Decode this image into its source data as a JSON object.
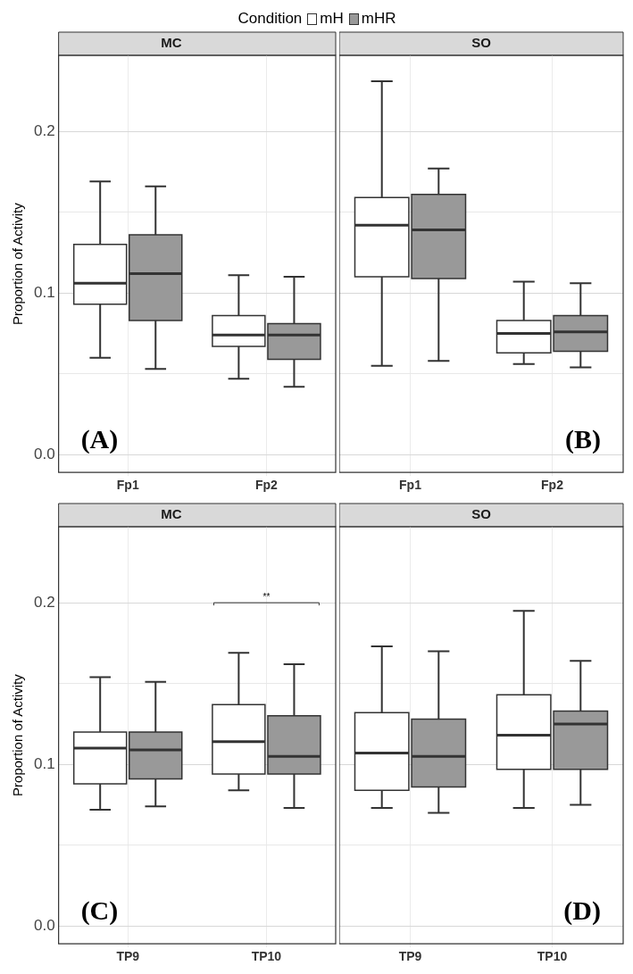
{
  "chart_data": [
    {
      "type": "box",
      "title": "MC",
      "ylabel": "Proportion of Activity",
      "legend_title": "Condition",
      "legend": "top",
      "grid": true,
      "categories": [
        "Fp1",
        "Fp2"
      ],
      "ylim": [
        -0.011,
        0.247
      ],
      "yticks": [
        {
          "value": 0,
          "label": "0.0"
        },
        {
          "value": 0.05,
          "label": null
        },
        0.1,
        {
          "value": 0.15,
          "label": null
        },
        0.2
      ],
      "annotations": [
        "(A)"
      ],
      "series": [
        {
          "name": "mH",
          "color": "#ffffff",
          "boxes": [
            {
              "low": 0.06,
              "q1": 0.093,
              "median": 0.106,
              "q3": 0.13,
              "high": 0.169
            },
            {
              "low": 0.047,
              "q1": 0.067,
              "median": 0.074,
              "q3": 0.086,
              "high": 0.111
            }
          ]
        },
        {
          "name": "mHR",
          "color": "#999999",
          "boxes": [
            {
              "low": 0.053,
              "q1": 0.083,
              "median": 0.112,
              "q3": 0.136,
              "high": 0.166
            },
            {
              "low": 0.042,
              "q1": 0.059,
              "median": 0.074,
              "q3": 0.081,
              "high": 0.11
            }
          ]
        }
      ]
    },
    {
      "type": "box",
      "title": "SO",
      "grid": true,
      "tick_labels": "x",
      "categories": [
        "Fp1",
        "Fp2"
      ],
      "ylim": [
        -0.011,
        0.247
      ],
      "yticks": [
        0,
        {
          "value": 0.05,
          "label": null
        },
        0.1,
        {
          "value": 0.15,
          "label": null
        },
        0.2
      ],
      "annotations": [
        "(B)"
      ],
      "series": [
        {
          "color": "#ffffff",
          "boxes": [
            {
              "low": 0.055,
              "q1": 0.11,
              "median": 0.142,
              "q3": 0.159,
              "high": 0.231
            },
            {
              "low": 0.056,
              "q1": 0.063,
              "median": 0.075,
              "q3": 0.083,
              "high": 0.107
            }
          ]
        },
        {
          "color": "#999999",
          "boxes": [
            {
              "low": 0.058,
              "q1": 0.109,
              "median": 0.139,
              "q3": 0.161,
              "high": 0.177
            },
            {
              "low": 0.054,
              "q1": 0.064,
              "median": 0.076,
              "q3": 0.086,
              "high": 0.106
            }
          ]
        }
      ]
    },
    {
      "type": "box",
      "title": "MC",
      "ylabel": "Proportion of Activity",
      "grid": true,
      "categories": [
        "TP9",
        "TP10"
      ],
      "ylim": [
        -0.011,
        0.247
      ],
      "yticks": [
        {
          "value": 0,
          "label": "0.0"
        },
        {
          "value": 0.05,
          "label": null
        },
        0.1,
        {
          "value": 0.15,
          "label": null
        },
        0.2
      ],
      "annotations": [
        "(C)",
        "**"
      ],
      "series": [
        {
          "color": "#ffffff",
          "boxes": [
            {
              "low": 0.072,
              "q1": 0.088,
              "median": 0.11,
              "q3": 0.12,
              "high": 0.154
            },
            {
              "low": 0.084,
              "q1": 0.094,
              "median": 0.114,
              "q3": 0.137,
              "high": 0.169
            }
          ]
        },
        {
          "color": "#999999",
          "boxes": [
            {
              "low": 0.074,
              "q1": 0.091,
              "median": 0.109,
              "q3": 0.12,
              "high": 0.151
            },
            {
              "low": 0.073,
              "q1": 0.094,
              "median": 0.105,
              "q3": 0.13,
              "high": 0.162
            }
          ]
        }
      ]
    },
    {
      "type": "box",
      "title": "SO",
      "grid": true,
      "tick_labels": "x",
      "categories": [
        "TP9",
        "TP10"
      ],
      "ylim": [
        -0.011,
        0.247
      ],
      "yticks": [
        0,
        {
          "value": 0.05,
          "label": null
        },
        0.1,
        {
          "value": 0.15,
          "label": null
        },
        0.2
      ],
      "annotations": [
        "(D)"
      ],
      "series": [
        {
          "color": "#ffffff",
          "boxes": [
            {
              "low": 0.073,
              "q1": 0.084,
              "median": 0.107,
              "q3": 0.132,
              "high": 0.173
            },
            {
              "low": 0.073,
              "q1": 0.097,
              "median": 0.118,
              "q3": 0.143,
              "high": 0.195
            }
          ]
        },
        {
          "color": "#999999",
          "boxes": [
            {
              "low": 0.07,
              "q1": 0.086,
              "median": 0.105,
              "q3": 0.128,
              "high": 0.17
            },
            {
              "low": 0.075,
              "q1": 0.097,
              "median": 0.125,
              "q3": 0.133,
              "high": 0.164
            }
          ]
        }
      ]
    }
  ]
}
